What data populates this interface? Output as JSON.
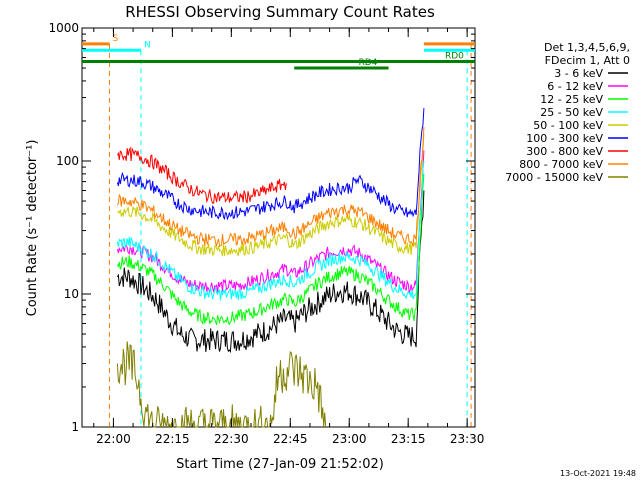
{
  "chart_data": {
    "type": "line",
    "title": "RHESSI Observing Summary Count Rates",
    "xlabel": "Start Time (27-Jan-09 21:52:02)",
    "ylabel": "Count Rate (s⁻¹ detector⁻¹)",
    "yscale": "log",
    "xrange_minutes": [
      0,
      100
    ],
    "ylim": [
      1,
      1000
    ],
    "x_ticks": [
      {
        "label": "22:00",
        "minute": 8
      },
      {
        "label": "22:15",
        "minute": 23
      },
      {
        "label": "22:30",
        "minute": 38
      },
      {
        "label": "22:45",
        "minute": 53
      },
      {
        "label": "23:00",
        "minute": 68
      },
      {
        "label": "23:15",
        "minute": 83
      },
      {
        "label": "23:30",
        "minute": 98
      }
    ],
    "y_ticks": [
      {
        "label": "1",
        "value": 1
      },
      {
        "label": "10",
        "value": 10
      },
      {
        "label": "100",
        "value": 100
      },
      {
        "label": "1000",
        "value": 1000
      }
    ],
    "legend": {
      "position": "right",
      "header": [
        "Det 1,3,4,5,6,9,",
        "FDecim 1, Att 0"
      ]
    },
    "series": [
      {
        "name": "3 - 6 keV",
        "color": "#000000",
        "points": [
          [
            9,
            13.5
          ],
          [
            12,
            13.5
          ],
          [
            16,
            11
          ],
          [
            19,
            9
          ],
          [
            22,
            6.5
          ],
          [
            25,
            5
          ],
          [
            28,
            4.5
          ],
          [
            31,
            4.5
          ],
          [
            34,
            4.5
          ],
          [
            37,
            4.5
          ],
          [
            40,
            4.5
          ],
          [
            43,
            4.8
          ],
          [
            46,
            5.2
          ],
          [
            49,
            5.8
          ],
          [
            52,
            6.5
          ],
          [
            54,
            6
          ],
          [
            56,
            7
          ],
          [
            59,
            8.2
          ],
          [
            62,
            9.5
          ],
          [
            65,
            10.5
          ],
          [
            68,
            10.5
          ],
          [
            71,
            9.5
          ],
          [
            74,
            8
          ],
          [
            77,
            6.5
          ],
          [
            80,
            5.3
          ],
          [
            83,
            4.8
          ],
          [
            85,
            4.8
          ],
          [
            86,
            20
          ],
          [
            87,
            60
          ]
        ]
      },
      {
        "name": "6 - 12 keV",
        "color": "#ff00ff",
        "points": [
          [
            9,
            22
          ],
          [
            12,
            22.5
          ],
          [
            15,
            21
          ],
          [
            18,
            19
          ],
          [
            21,
            16
          ],
          [
            24,
            13.5
          ],
          [
            27,
            12
          ],
          [
            30,
            11.5
          ],
          [
            33,
            11.5
          ],
          [
            36,
            11.5
          ],
          [
            39,
            11.5
          ],
          [
            42,
            12
          ],
          [
            45,
            13
          ],
          [
            48,
            14
          ],
          [
            52,
            15.5
          ],
          [
            54,
            14
          ],
          [
            57,
            16
          ],
          [
            60,
            18.5
          ],
          [
            63,
            20.5
          ],
          [
            66,
            21.5
          ],
          [
            68,
            21.5
          ],
          [
            71,
            20
          ],
          [
            74,
            17
          ],
          [
            77,
            14.5
          ],
          [
            80,
            12.5
          ],
          [
            83,
            11.5
          ],
          [
            85,
            11.5
          ],
          [
            86,
            40
          ],
          [
            87,
            120
          ]
        ]
      },
      {
        "name": "12 - 25 keV",
        "color": "#00ff00",
        "points": [
          [
            9,
            17
          ],
          [
            12,
            17.5
          ],
          [
            15,
            16
          ],
          [
            18,
            14
          ],
          [
            21,
            11.5
          ],
          [
            24,
            9
          ],
          [
            27,
            7.5
          ],
          [
            30,
            6.8
          ],
          [
            33,
            6.5
          ],
          [
            36,
            6.5
          ],
          [
            39,
            6.7
          ],
          [
            42,
            7
          ],
          [
            45,
            7.5
          ],
          [
            48,
            8.3
          ],
          [
            52,
            9.2
          ],
          [
            54,
            8.5
          ],
          [
            57,
            10
          ],
          [
            60,
            12
          ],
          [
            63,
            13.5
          ],
          [
            66,
            14.5
          ],
          [
            68,
            14.5
          ],
          [
            71,
            13.5
          ],
          [
            74,
            11.5
          ],
          [
            77,
            9.5
          ],
          [
            80,
            8
          ],
          [
            83,
            7
          ],
          [
            85,
            7
          ],
          [
            86,
            25
          ],
          [
            87,
            80
          ]
        ]
      },
      {
        "name": "25 - 50 keV",
        "color": "#00ffff",
        "points": [
          [
            9,
            24
          ],
          [
            12,
            24.5
          ],
          [
            15,
            22
          ],
          [
            18,
            20
          ],
          [
            21,
            16.5
          ],
          [
            24,
            13.5
          ],
          [
            27,
            11.5
          ],
          [
            30,
            10.5
          ],
          [
            33,
            10
          ],
          [
            36,
            10
          ],
          [
            39,
            10
          ],
          [
            42,
            10.3
          ],
          [
            45,
            11
          ],
          [
            48,
            12
          ],
          [
            52,
            13
          ],
          [
            54,
            12
          ],
          [
            57,
            14
          ],
          [
            60,
            16
          ],
          [
            63,
            18
          ],
          [
            66,
            19
          ],
          [
            68,
            19
          ],
          [
            71,
            18
          ],
          [
            74,
            15.5
          ],
          [
            77,
            13
          ],
          [
            80,
            11
          ],
          [
            83,
            10
          ],
          [
            85,
            10
          ],
          [
            86,
            35
          ],
          [
            87,
            100
          ]
        ]
      },
      {
        "name": "50 - 100 keV",
        "color": "#cccc00",
        "points": [
          [
            9,
            42
          ],
          [
            12,
            42
          ],
          [
            15,
            40
          ],
          [
            18,
            36
          ],
          [
            21,
            31
          ],
          [
            24,
            27
          ],
          [
            27,
            24
          ],
          [
            30,
            22
          ],
          [
            33,
            21.5
          ],
          [
            36,
            21.5
          ],
          [
            39,
            21.5
          ],
          [
            42,
            22
          ],
          [
            45,
            23
          ],
          [
            48,
            24.5
          ],
          [
            52,
            26.5
          ],
          [
            54,
            23
          ],
          [
            57,
            27
          ],
          [
            60,
            31
          ],
          [
            63,
            34.5
          ],
          [
            66,
            36
          ],
          [
            68,
            36
          ],
          [
            71,
            34
          ],
          [
            74,
            30
          ],
          [
            77,
            26
          ],
          [
            80,
            23
          ],
          [
            83,
            22
          ],
          [
            85,
            22
          ],
          [
            86,
            60
          ],
          [
            87,
            160
          ]
        ]
      },
      {
        "name": "100 - 300 keV",
        "color": "#0000ff",
        "points": [
          [
            9,
            72
          ],
          [
            12,
            72
          ],
          [
            15,
            70
          ],
          [
            18,
            64
          ],
          [
            21,
            56
          ],
          [
            24,
            49
          ],
          [
            27,
            44
          ],
          [
            30,
            42
          ],
          [
            33,
            41
          ],
          [
            36,
            41
          ],
          [
            39,
            41
          ],
          [
            42,
            42
          ],
          [
            45,
            44
          ],
          [
            48,
            47
          ],
          [
            52,
            50
          ],
          [
            54,
            45
          ],
          [
            57,
            51
          ],
          [
            60,
            57
          ],
          [
            63,
            61
          ],
          [
            66,
            63
          ],
          [
            68,
            63
          ],
          [
            70,
            72
          ],
          [
            71,
            70
          ],
          [
            74,
            60
          ],
          [
            77,
            50
          ],
          [
            80,
            43
          ],
          [
            83,
            40
          ],
          [
            85,
            40
          ],
          [
            86,
            110
          ],
          [
            87,
            250
          ]
        ]
      },
      {
        "name": "300 - 800 keV",
        "color": "#ff0000",
        "points": [
          [
            9,
            112
          ],
          [
            12,
            112
          ],
          [
            15,
            108
          ],
          [
            18,
            98
          ],
          [
            21,
            84
          ],
          [
            24,
            72
          ],
          [
            27,
            63
          ],
          [
            30,
            57
          ],
          [
            33,
            54
          ],
          [
            36,
            53
          ],
          [
            39,
            53
          ],
          [
            42,
            54
          ],
          [
            45,
            57
          ],
          [
            48,
            62
          ],
          [
            52,
            68
          ]
        ]
      },
      {
        "name": "800 - 7000 keV",
        "color": "#ff8000",
        "points": [
          [
            9,
            50
          ],
          [
            12,
            50
          ],
          [
            15,
            47
          ],
          [
            18,
            42
          ],
          [
            21,
            36
          ],
          [
            24,
            31
          ],
          [
            27,
            28
          ],
          [
            30,
            26
          ],
          [
            33,
            25.5
          ],
          [
            36,
            25.5
          ],
          [
            39,
            25.5
          ],
          [
            42,
            26
          ],
          [
            45,
            27.5
          ],
          [
            48,
            29.5
          ],
          [
            52,
            32
          ],
          [
            54,
            28
          ],
          [
            57,
            32
          ],
          [
            60,
            37
          ],
          [
            63,
            41
          ],
          [
            66,
            43
          ],
          [
            68,
            43
          ],
          [
            71,
            41
          ],
          [
            74,
            36
          ],
          [
            77,
            31
          ],
          [
            80,
            27.5
          ],
          [
            83,
            26
          ],
          [
            85,
            26
          ],
          [
            86,
            70
          ],
          [
            87,
            180
          ]
        ]
      },
      {
        "name": "7000 - 15000 keV",
        "color": "#808000",
        "points": [
          [
            9,
            3
          ],
          [
            12,
            3
          ],
          [
            14,
            2.4
          ],
          [
            16,
            1.3
          ],
          [
            18,
            1
          ],
          [
            48,
            1
          ],
          [
            50,
            2.5
          ],
          [
            53,
            2.8
          ],
          [
            56,
            2.5
          ],
          [
            58,
            2.2
          ],
          [
            60,
            2
          ],
          [
            61,
            1.3
          ],
          [
            62,
            1
          ]
        ]
      }
    ],
    "flags": [
      {
        "label": "S",
        "color": "#ff8000",
        "from": 0,
        "to": 7,
        "level": 760,
        "dashed_at": [
          7,
          99
        ]
      },
      {
        "label": "N",
        "color": "#00ffff",
        "from": 0,
        "to": 15,
        "level": 680,
        "dashed_at": [
          15,
          98
        ]
      },
      {
        "label": "",
        "color": "#ff8000",
        "from": 87,
        "to": 100,
        "level": 760
      },
      {
        "label": "",
        "color": "#00ffff",
        "from": 87,
        "to": 100,
        "level": 680
      },
      {
        "label": "RD0",
        "color": "#008000",
        "from": 0,
        "to": 100,
        "level": 560
      },
      {
        "label": "RD4",
        "color": "#008000",
        "from": 54,
        "to": 78,
        "level": 500
      }
    ],
    "footer_date": "13-Oct-2021 19:48"
  }
}
